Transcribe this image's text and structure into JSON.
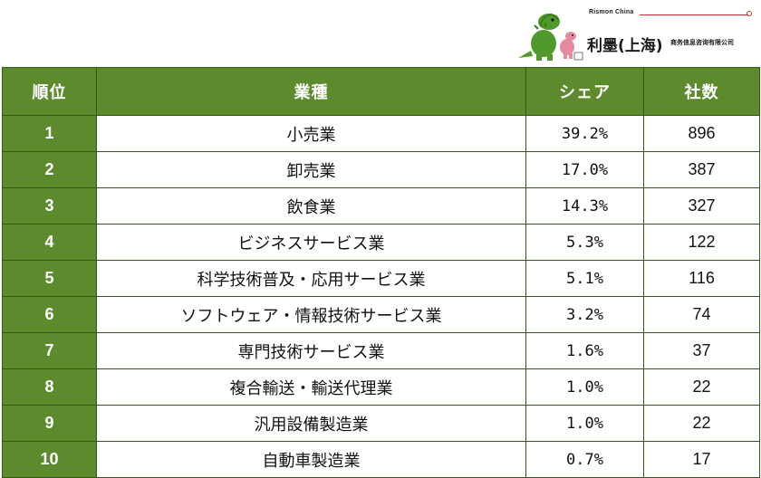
{
  "logo": {
    "brand_en": "Rismon China",
    "brand_cn": "利墨(上海)",
    "brand_sub": "商务信息咨询有限公司"
  },
  "table": {
    "headers": {
      "rank": "順位",
      "industry": "業種",
      "share": "シェア",
      "count": "社数"
    },
    "rows": [
      {
        "rank": "1",
        "industry": "小売業",
        "share": "39.2%",
        "count": "896"
      },
      {
        "rank": "2",
        "industry": "卸売業",
        "share": "17.0%",
        "count": "387"
      },
      {
        "rank": "3",
        "industry": "飲食業",
        "share": "14.3%",
        "count": "327"
      },
      {
        "rank": "4",
        "industry": "ビジネスサービス業",
        "share": "5.3%",
        "count": "122"
      },
      {
        "rank": "5",
        "industry": "科学技術普及・応用サービス業",
        "share": "5.1%",
        "count": "116"
      },
      {
        "rank": "6",
        "industry": "ソフトウェア・情報技術サービス業",
        "share": "3.2%",
        "count": "74"
      },
      {
        "rank": "7",
        "industry": "専門技術サービス業",
        "share": "1.6%",
        "count": "37"
      },
      {
        "rank": "8",
        "industry": "複合輸送・輸送代理業",
        "share": "1.0%",
        "count": "22"
      },
      {
        "rank": "9",
        "industry": "汎用設備製造業",
        "share": "1.0%",
        "count": "22"
      },
      {
        "rank": "10",
        "industry": "自動車製造業",
        "share": "0.7%",
        "count": "17"
      }
    ]
  },
  "colors": {
    "header_green": "#5c8a2c",
    "border_green": "#2f5a18"
  }
}
